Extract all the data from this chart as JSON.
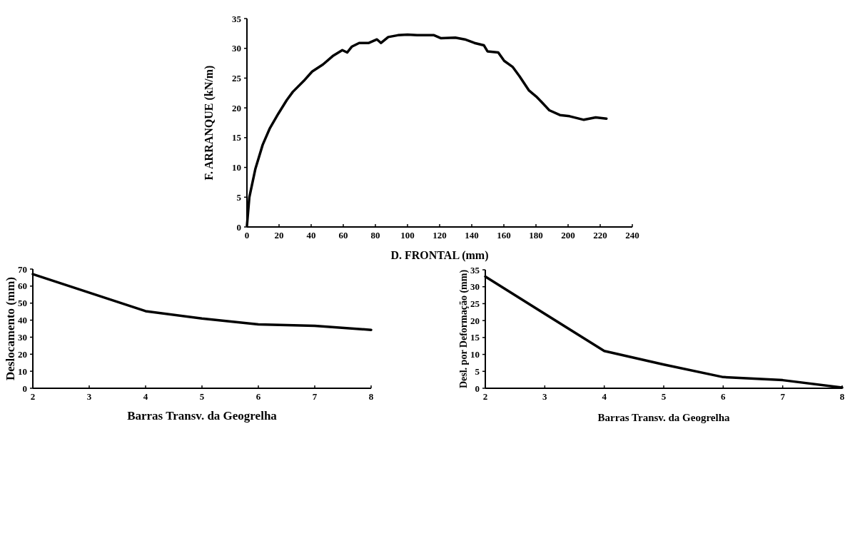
{
  "chart_data": [
    {
      "type": "line",
      "xlabel": "D. FRONTAL (mm)",
      "ylabel": "F. ARRANQUE (kN/m)",
      "xlim": [
        0,
        240
      ],
      "xticks": [
        0,
        20,
        40,
        60,
        80,
        100,
        120,
        140,
        160,
        180,
        200,
        220,
        240
      ],
      "ylim": [
        0,
        35
      ],
      "yticks": [
        0,
        5,
        10,
        15,
        20,
        25,
        30,
        35
      ],
      "series": [
        {
          "color": "#000000",
          "x": [
            0,
            1.5,
            5.3,
            9.8,
            14.3,
            19.5,
            24.8,
            28.6,
            35.3,
            40.6,
            47.4,
            53.4,
            59.4,
            62.4,
            65.4,
            69.9,
            75.9,
            81,
            83.5,
            88,
            94,
            100,
            106,
            112,
            116.5,
            120.9,
            129.8,
            135.7,
            141.7,
            147.6,
            149.8,
            156.5,
            160.2,
            165.4,
            169.8,
            175.7,
            180.2,
            183.1,
            188.3,
            194.9,
            200.9,
            209.8,
            217.2,
            223.9
          ],
          "values": [
            0.2,
            5,
            9.8,
            13.8,
            16.6,
            19,
            21.3,
            22.7,
            24.5,
            26.1,
            27.3,
            28.7,
            29.7,
            29.3,
            30.3,
            30.9,
            30.9,
            31.5,
            30.9,
            31.9,
            32.2,
            32.3,
            32.2,
            32.2,
            32.2,
            31.7,
            31.8,
            31.5,
            30.9,
            30.5,
            29.5,
            29.3,
            27.9,
            26.9,
            25.3,
            22.9,
            21.9,
            21.1,
            19.6,
            18.8,
            18.6,
            18.0,
            18.4,
            18.2
          ]
        }
      ]
    },
    {
      "type": "line",
      "xlabel": "Barras Transv. da Geogrelha",
      "ylabel": "Deslocamento (mm)",
      "xlim": [
        2,
        8
      ],
      "xticks": [
        2,
        3,
        4,
        5,
        6,
        7,
        8
      ],
      "ylim": [
        0,
        70
      ],
      "yticks": [
        0,
        10,
        20,
        30,
        40,
        50,
        60,
        70
      ],
      "series": [
        {
          "color": "#000000",
          "x": [
            2,
            4,
            5,
            6,
            7,
            8
          ],
          "values": [
            67,
            45.3,
            41,
            37.5,
            36.7,
            34.3
          ]
        }
      ]
    },
    {
      "type": "line",
      "xlabel": "Barras Transv. da Geogrelha",
      "ylabel": "Desl. por Deformação (mm)",
      "xlim": [
        2,
        8
      ],
      "xticks": [
        2,
        3,
        4,
        5,
        6,
        7,
        8
      ],
      "ylim": [
        0,
        35
      ],
      "yticks": [
        0,
        5,
        10,
        15,
        20,
        25,
        30,
        35
      ],
      "series": [
        {
          "color": "#000000",
          "x": [
            2,
            4,
            5,
            6,
            7,
            8
          ],
          "values": [
            33,
            11,
            7,
            3.3,
            2.4,
            0.2
          ]
        }
      ]
    }
  ]
}
